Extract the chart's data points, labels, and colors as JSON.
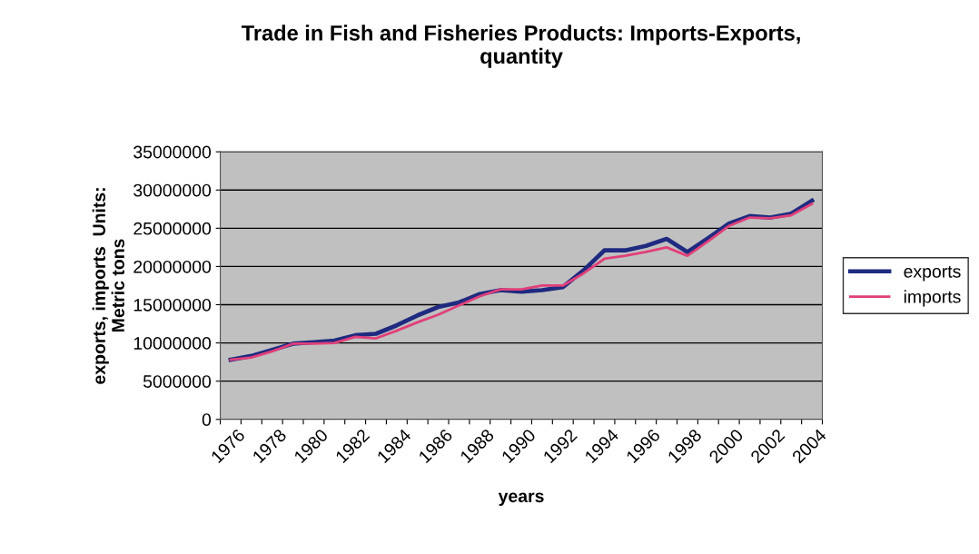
{
  "chart_data": {
    "type": "line",
    "title": "Trade in Fish and Fisheries Products: Imports-Exports,\nquantity",
    "xlabel": "years",
    "ylabel": "exports, imports  Units:\nMetric tons",
    "categories": [
      "1976",
      null,
      "1978",
      null,
      "1980",
      null,
      "1982",
      null,
      "1984",
      null,
      "1986",
      null,
      "1988",
      null,
      "1990",
      null,
      "1992",
      null,
      "1994",
      null,
      "1996",
      null,
      "1998",
      null,
      "2000",
      null,
      "2002",
      null,
      "2004"
    ],
    "series": [
      {
        "name": "exports",
        "color": "#1f2a80",
        "values": [
          7800000,
          8300000,
          9100000,
          9900000,
          10100000,
          10300000,
          11000000,
          11200000,
          12300000,
          13600000,
          14700000,
          15300000,
          16400000,
          16900000,
          16700000,
          16900000,
          17300000,
          19500000,
          22100000,
          22100000,
          22700000,
          23600000,
          21900000,
          23700000,
          25600000,
          26600000,
          26400000,
          26900000,
          28600000
        ]
      },
      {
        "name": "imports",
        "color": "#e0407a",
        "values": [
          7800000,
          8100000,
          8900000,
          9900000,
          9900000,
          10000000,
          10800000,
          10600000,
          11600000,
          12700000,
          13700000,
          14900000,
          16100000,
          17000000,
          17000000,
          17500000,
          17500000,
          19100000,
          21000000,
          21400000,
          21900000,
          22500000,
          21400000,
          23300000,
          25300000,
          26400000,
          26300000,
          26700000,
          28200000
        ]
      }
    ],
    "ylim": [
      0,
      35000000
    ],
    "yticks": [
      0,
      5000000,
      10000000,
      15000000,
      20000000,
      25000000,
      30000000,
      35000000
    ],
    "grid": "y",
    "legend": "right",
    "marker": "none",
    "line_style": "solid"
  }
}
